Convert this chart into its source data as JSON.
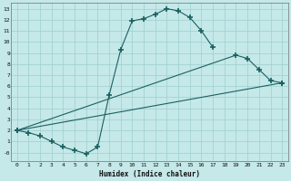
{
  "xlabel": "Humidex (Indice chaleur)",
  "bg_color": "#c5e8e8",
  "line_color": "#1a6060",
  "grid_color": "#9ecfcf",
  "xlim": [
    -0.5,
    23.5
  ],
  "ylim": [
    -0.8,
    13.5
  ],
  "xticks": [
    0,
    1,
    2,
    3,
    4,
    5,
    6,
    7,
    8,
    9,
    10,
    11,
    12,
    13,
    14,
    15,
    16,
    17,
    18,
    19,
    20,
    21,
    22,
    23
  ],
  "yticks": [
    0,
    1,
    2,
    3,
    4,
    5,
    6,
    7,
    8,
    9,
    10,
    11,
    12,
    13
  ],
  "ytick_labels": [
    "-0",
    "1",
    "2",
    "3",
    "4",
    "5",
    "6",
    "7",
    "8",
    "9",
    "10",
    "11",
    "12",
    "13"
  ],
  "line1_x": [
    0,
    1,
    2,
    3,
    4,
    5,
    6,
    7,
    8,
    9,
    10,
    11,
    12,
    13,
    14,
    15,
    16,
    17
  ],
  "line1_y": [
    2.0,
    1.8,
    1.5,
    1.0,
    0.5,
    0.2,
    -0.1,
    0.5,
    5.2,
    9.3,
    11.9,
    12.1,
    12.5,
    13.0,
    12.8,
    12.2,
    11.0,
    9.5
  ],
  "line2_x": [
    0,
    19,
    20,
    21,
    22,
    23
  ],
  "line2_y": [
    2.0,
    8.8,
    8.5,
    7.5,
    6.5,
    6.3
  ],
  "line3_x": [
    0,
    23
  ],
  "line3_y": [
    2.0,
    6.3
  ]
}
